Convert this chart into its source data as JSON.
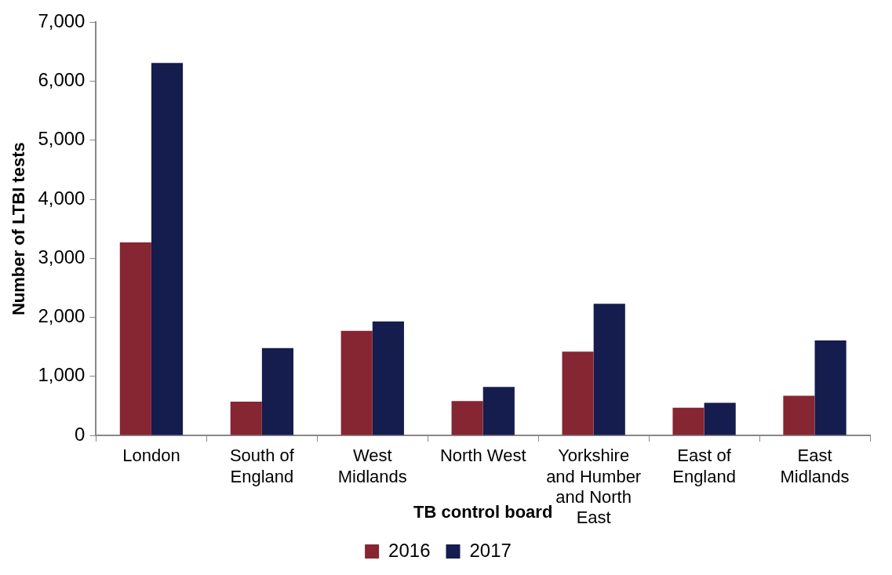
{
  "chart_data": {
    "type": "bar",
    "xlabel": "TB control board",
    "ylabel": "Number of LTBI tests",
    "categories": [
      "London",
      "South of England",
      "West Midlands",
      "North West",
      "Yorkshire and Humber and North East",
      "East of England",
      "East Midlands"
    ],
    "series": [
      {
        "name": "2016",
        "color": "#862633",
        "values": [
          3270,
          570,
          1770,
          580,
          1420,
          470,
          670
        ]
      },
      {
        "name": "2017",
        "color": "#151c4e",
        "values": [
          6310,
          1480,
          1930,
          820,
          2230,
          550,
          1610
        ]
      }
    ],
    "ylim": [
      0,
      7000
    ],
    "yticks": [
      {
        "value": 0,
        "label": "0"
      },
      {
        "value": 1000,
        "label": "1,000"
      },
      {
        "value": 2000,
        "label": "2,000"
      },
      {
        "value": 3000,
        "label": "3,000"
      },
      {
        "value": 4000,
        "label": "4,000"
      },
      {
        "value": 5000,
        "label": "5,000"
      },
      {
        "value": 6000,
        "label": "6,000"
      },
      {
        "value": 7000,
        "label": "7,000"
      }
    ],
    "grid": false,
    "legend": "bottom"
  }
}
